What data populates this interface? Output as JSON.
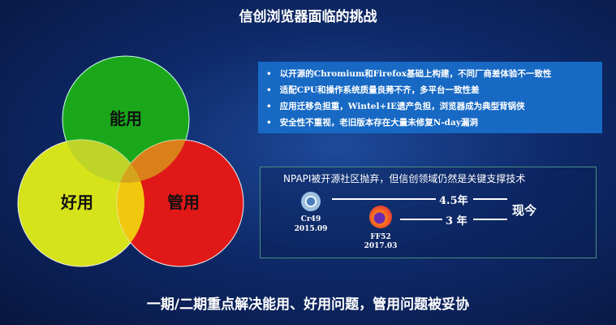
{
  "title": "信创浏览器面临的挑战",
  "venn": {
    "top": "能用",
    "left": "好用",
    "right": "管用",
    "colors": {
      "top": "#1aa81a",
      "left": "#d6e21a",
      "right": "#e01818",
      "overlap": "#f2c80f"
    }
  },
  "challenges": [
    "以开源的Chromium和Firefox基础上构建，不同厂商差体验不一致性",
    "适配CPU和操作系统质量良莠不齐，多平台一致性差",
    "应用迁移负担重，Wintel+IE遗产负担，浏览器成为典型背锅侠",
    "安全性不重视，老旧版本存在大量未修复N-day漏洞"
  ],
  "npapi": {
    "title": "NPAPI被开源社区抛弃，但信创领域仍然是关键支撑技术",
    "chrome": {
      "icon": "chrome-icon",
      "name": "Cr49",
      "date": "2015.09",
      "gap": "4.5年"
    },
    "firefox": {
      "icon": "firefox-icon",
      "name": "FF52",
      "date": "2017.03",
      "gap": "3 年"
    },
    "now": "现今"
  },
  "bottom": "一期/二期重点解决能用、好用问题，管用问题被妥协"
}
